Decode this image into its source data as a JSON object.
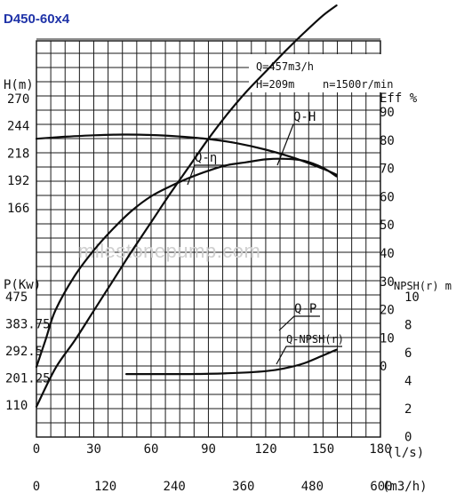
{
  "chart_data": {
    "type": "line",
    "title": "D450-60x4",
    "annotation": {
      "flow": "Q=457m3/h",
      "head": "H=209m",
      "speed": "n=1500r/min"
    },
    "watermark": "milestonepump.com",
    "x_axis": {
      "label": "(l/s)",
      "ticks": [
        "0",
        "30",
        "60",
        "90",
        "120",
        "150",
        "180"
      ],
      "range": [
        0,
        180
      ]
    },
    "x2_axis": {
      "label": "(m3/h)",
      "ticks": [
        "0",
        "120",
        "240",
        "360",
        "480",
        "600"
      ]
    },
    "axes_left": {
      "head": {
        "label": "H(m)",
        "ticks": [
          "270",
          "244",
          "218",
          "192",
          "166"
        ]
      },
      "power": {
        "label": "P(Kw)",
        "ticks": [
          "475",
          "383.75",
          "292.5",
          "201.25",
          "110"
        ]
      }
    },
    "axes_right": {
      "eff": {
        "label": "Eff %",
        "ticks": [
          "90",
          "80",
          "70",
          "60",
          "50",
          "40",
          "30",
          "20",
          "10",
          "0"
        ]
      },
      "npsh": {
        "label": "NPSH(r) m",
        "ticks": [
          "10",
          "8",
          "6",
          "4",
          "2",
          "0"
        ]
      }
    },
    "grid": true,
    "series": [
      {
        "name": "Q-H",
        "axis": "head",
        "x": [
          0,
          15,
          30,
          45,
          60,
          75,
          90,
          105,
          120,
          135,
          150,
          157
        ],
        "y": [
          232.5,
          234.3,
          235.6,
          236.3,
          235.9,
          234.5,
          232.2,
          228.3,
          222.5,
          214.8,
          205,
          199.6
        ]
      },
      {
        "name": "Q-η",
        "axis": "eff",
        "x": [
          0,
          5,
          10,
          20,
          30,
          40,
          50,
          60,
          70,
          80,
          90,
          100,
          110,
          120,
          130,
          140,
          150,
          157
        ],
        "y": [
          0,
          10,
          20,
          32,
          41,
          48.5,
          55,
          60,
          63.5,
          66.5,
          69,
          71,
          72,
          73,
          73.2,
          72.5,
          70,
          67
        ]
      },
      {
        "name": "Q-P",
        "axis": "power",
        "x": [
          0,
          10,
          20,
          30,
          40,
          50,
          60,
          70,
          80,
          90,
          100,
          110,
          120,
          130,
          140,
          150,
          157
        ],
        "y": [
          113,
          144,
          166,
          190,
          214,
          238,
          261,
          284,
          306,
          328,
          348,
          366,
          382,
          398,
          413,
          427,
          435
        ]
      },
      {
        "name": "Q-NPSH(r)",
        "axis": "npsh",
        "x": [
          47,
          60,
          80,
          100,
          120,
          130,
          140,
          150,
          157
        ],
        "y": [
          4.4,
          4.4,
          4.4,
          4.45,
          4.6,
          4.8,
          5.15,
          5.7,
          6.1
        ]
      }
    ]
  }
}
